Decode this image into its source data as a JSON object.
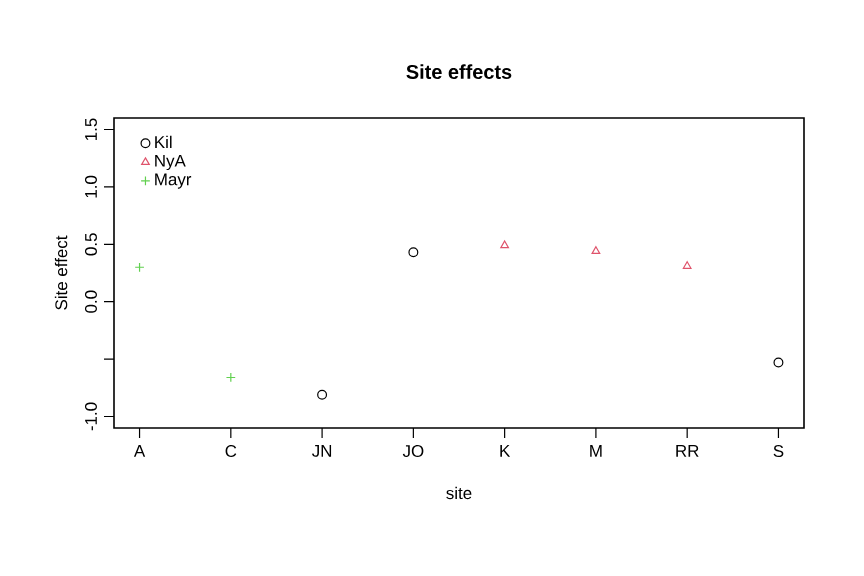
{
  "chart_data": {
    "type": "scatter",
    "title": "Site effects",
    "xlabel": "site",
    "ylabel": "Site effect",
    "categories": [
      "A",
      "C",
      "JN",
      "JO",
      "K",
      "M",
      "RR",
      "S"
    ],
    "series": [
      {
        "name": "Kil",
        "color": "#000000",
        "marker": "circle",
        "values": [
          null,
          null,
          -0.81,
          0.43,
          null,
          null,
          null,
          -0.53
        ]
      },
      {
        "name": "NyA",
        "color": "#df536b",
        "marker": "triangle",
        "values": [
          null,
          null,
          null,
          null,
          0.49,
          0.44,
          0.31,
          null
        ]
      },
      {
        "name": "Mayr",
        "color": "#61d04f",
        "marker": "cross",
        "values": [
          0.3,
          -0.66,
          null,
          null,
          null,
          null,
          null,
          null
        ]
      }
    ],
    "ylim": [
      -1.1,
      1.6
    ],
    "yticks": [
      {
        "value": -1,
        "label": "-1.0"
      },
      {
        "value": -0.5,
        "label": null
      },
      {
        "value": 0,
        "label": "0.0"
      },
      {
        "value": 0.5,
        "label": "0.5"
      },
      {
        "value": 1,
        "label": "1.0"
      },
      {
        "value": 1.5,
        "label": "1.5"
      }
    ],
    "legend": "top left",
    "grid": false
  }
}
